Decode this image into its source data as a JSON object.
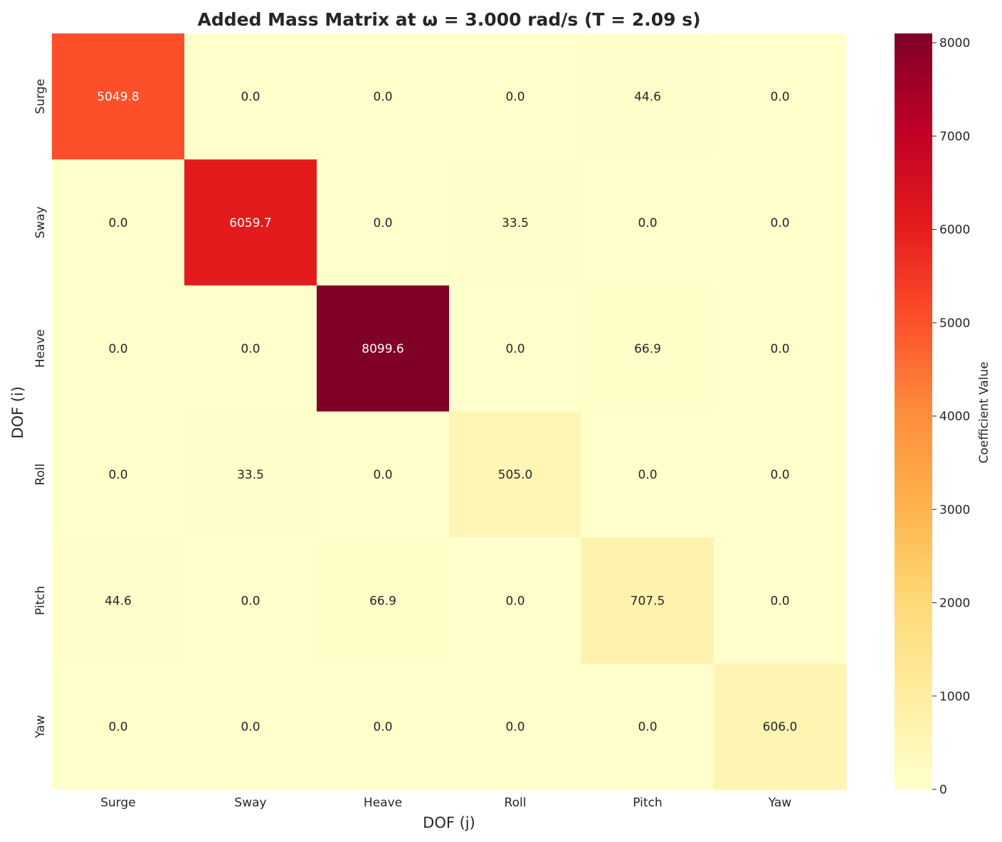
{
  "chart_data": {
    "type": "heatmap",
    "title": "Added Mass Matrix at ω = 3.000 rad/s (T = 2.09 s)",
    "xlabel": "DOF (j)",
    "ylabel": "DOF (i)",
    "x_categories": [
      "Surge",
      "Sway",
      "Heave",
      "Roll",
      "Pitch",
      "Yaw"
    ],
    "y_categories": [
      "Surge",
      "Sway",
      "Heave",
      "Roll",
      "Pitch",
      "Yaw"
    ],
    "values": [
      [
        5049.8,
        0.0,
        0.0,
        0.0,
        44.6,
        0.0
      ],
      [
        0.0,
        6059.7,
        0.0,
        33.5,
        0.0,
        0.0
      ],
      [
        0.0,
        0.0,
        8099.6,
        0.0,
        66.9,
        0.0
      ],
      [
        0.0,
        33.5,
        0.0,
        505.0,
        0.0,
        0.0
      ],
      [
        44.6,
        0.0,
        66.9,
        0.0,
        707.5,
        0.0
      ],
      [
        0.0,
        0.0,
        0.0,
        0.0,
        0.0,
        606.0
      ]
    ],
    "colorbar": {
      "label": "Coefficient Value",
      "range": [
        0,
        8099.6
      ],
      "ticks": [
        0,
        1000,
        2000,
        3000,
        4000,
        5000,
        6000,
        7000,
        8000
      ],
      "colormap": "YlOrRd"
    }
  }
}
